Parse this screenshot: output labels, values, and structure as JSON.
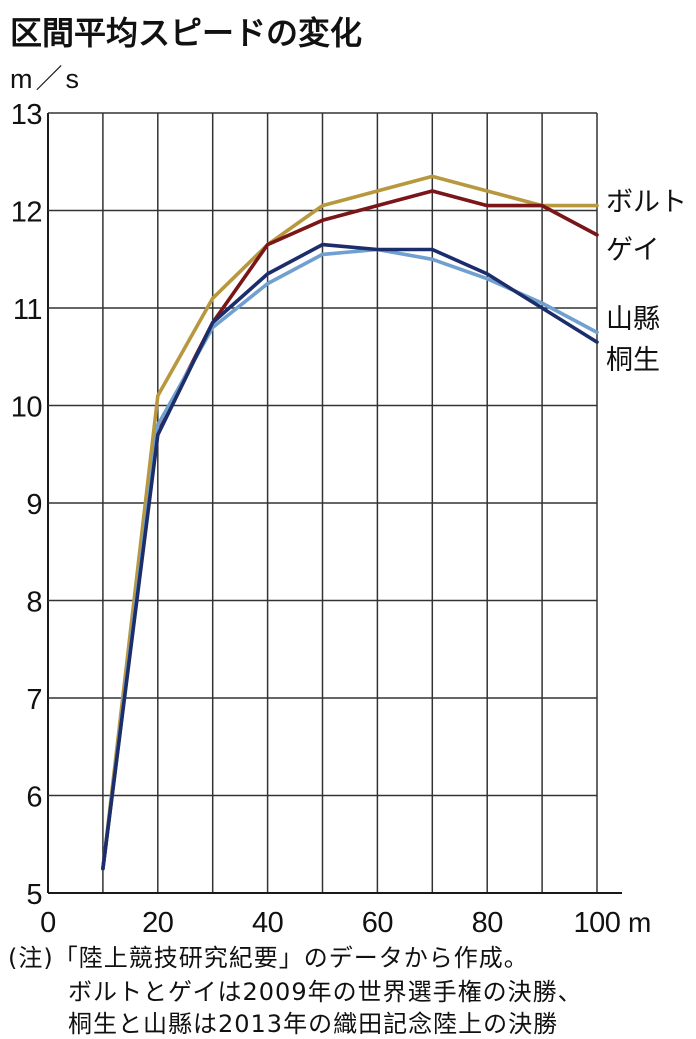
{
  "chart_data": {
    "type": "line",
    "title": "区間平均スピードの変化",
    "ylabel": "m／s",
    "xlabel": "m",
    "x": [
      10,
      20,
      30,
      40,
      50,
      60,
      70,
      80,
      90,
      100
    ],
    "xlim": [
      0,
      100
    ],
    "ylim": [
      5,
      13
    ],
    "x_ticks": [
      0,
      20,
      40,
      60,
      80,
      100
    ],
    "y_ticks": [
      5,
      6,
      7,
      8,
      9,
      10,
      11,
      12,
      13
    ],
    "grid": true,
    "legend": "right",
    "series": [
      {
        "name": "ボルト",
        "color": "#b8983f",
        "values": [
          5.25,
          10.1,
          11.1,
          11.65,
          12.05,
          12.2,
          12.35,
          12.2,
          12.05,
          12.05
        ]
      },
      {
        "name": "ゲイ",
        "color": "#7a1518",
        "values": [
          5.25,
          9.75,
          10.85,
          11.65,
          11.9,
          12.05,
          12.2,
          12.05,
          12.05,
          11.75
        ]
      },
      {
        "name": "山縣",
        "color": "#6fa0cf",
        "values": [
          5.25,
          9.8,
          10.8,
          11.25,
          11.55,
          11.6,
          11.5,
          11.3,
          11.05,
          10.75
        ]
      },
      {
        "name": "桐生",
        "color": "#1b2d6b",
        "values": [
          5.25,
          9.7,
          10.85,
          11.35,
          11.65,
          11.6,
          11.6,
          11.35,
          11.0,
          10.65
        ]
      }
    ]
  },
  "footnote": [
    "(注)「陸上競技研究紀要」のデータから作成。",
    "ボルトとゲイは2009年の世界選手権の決勝、",
    "桐生と山縣は2013年の織田記念陸上の決勝"
  ]
}
